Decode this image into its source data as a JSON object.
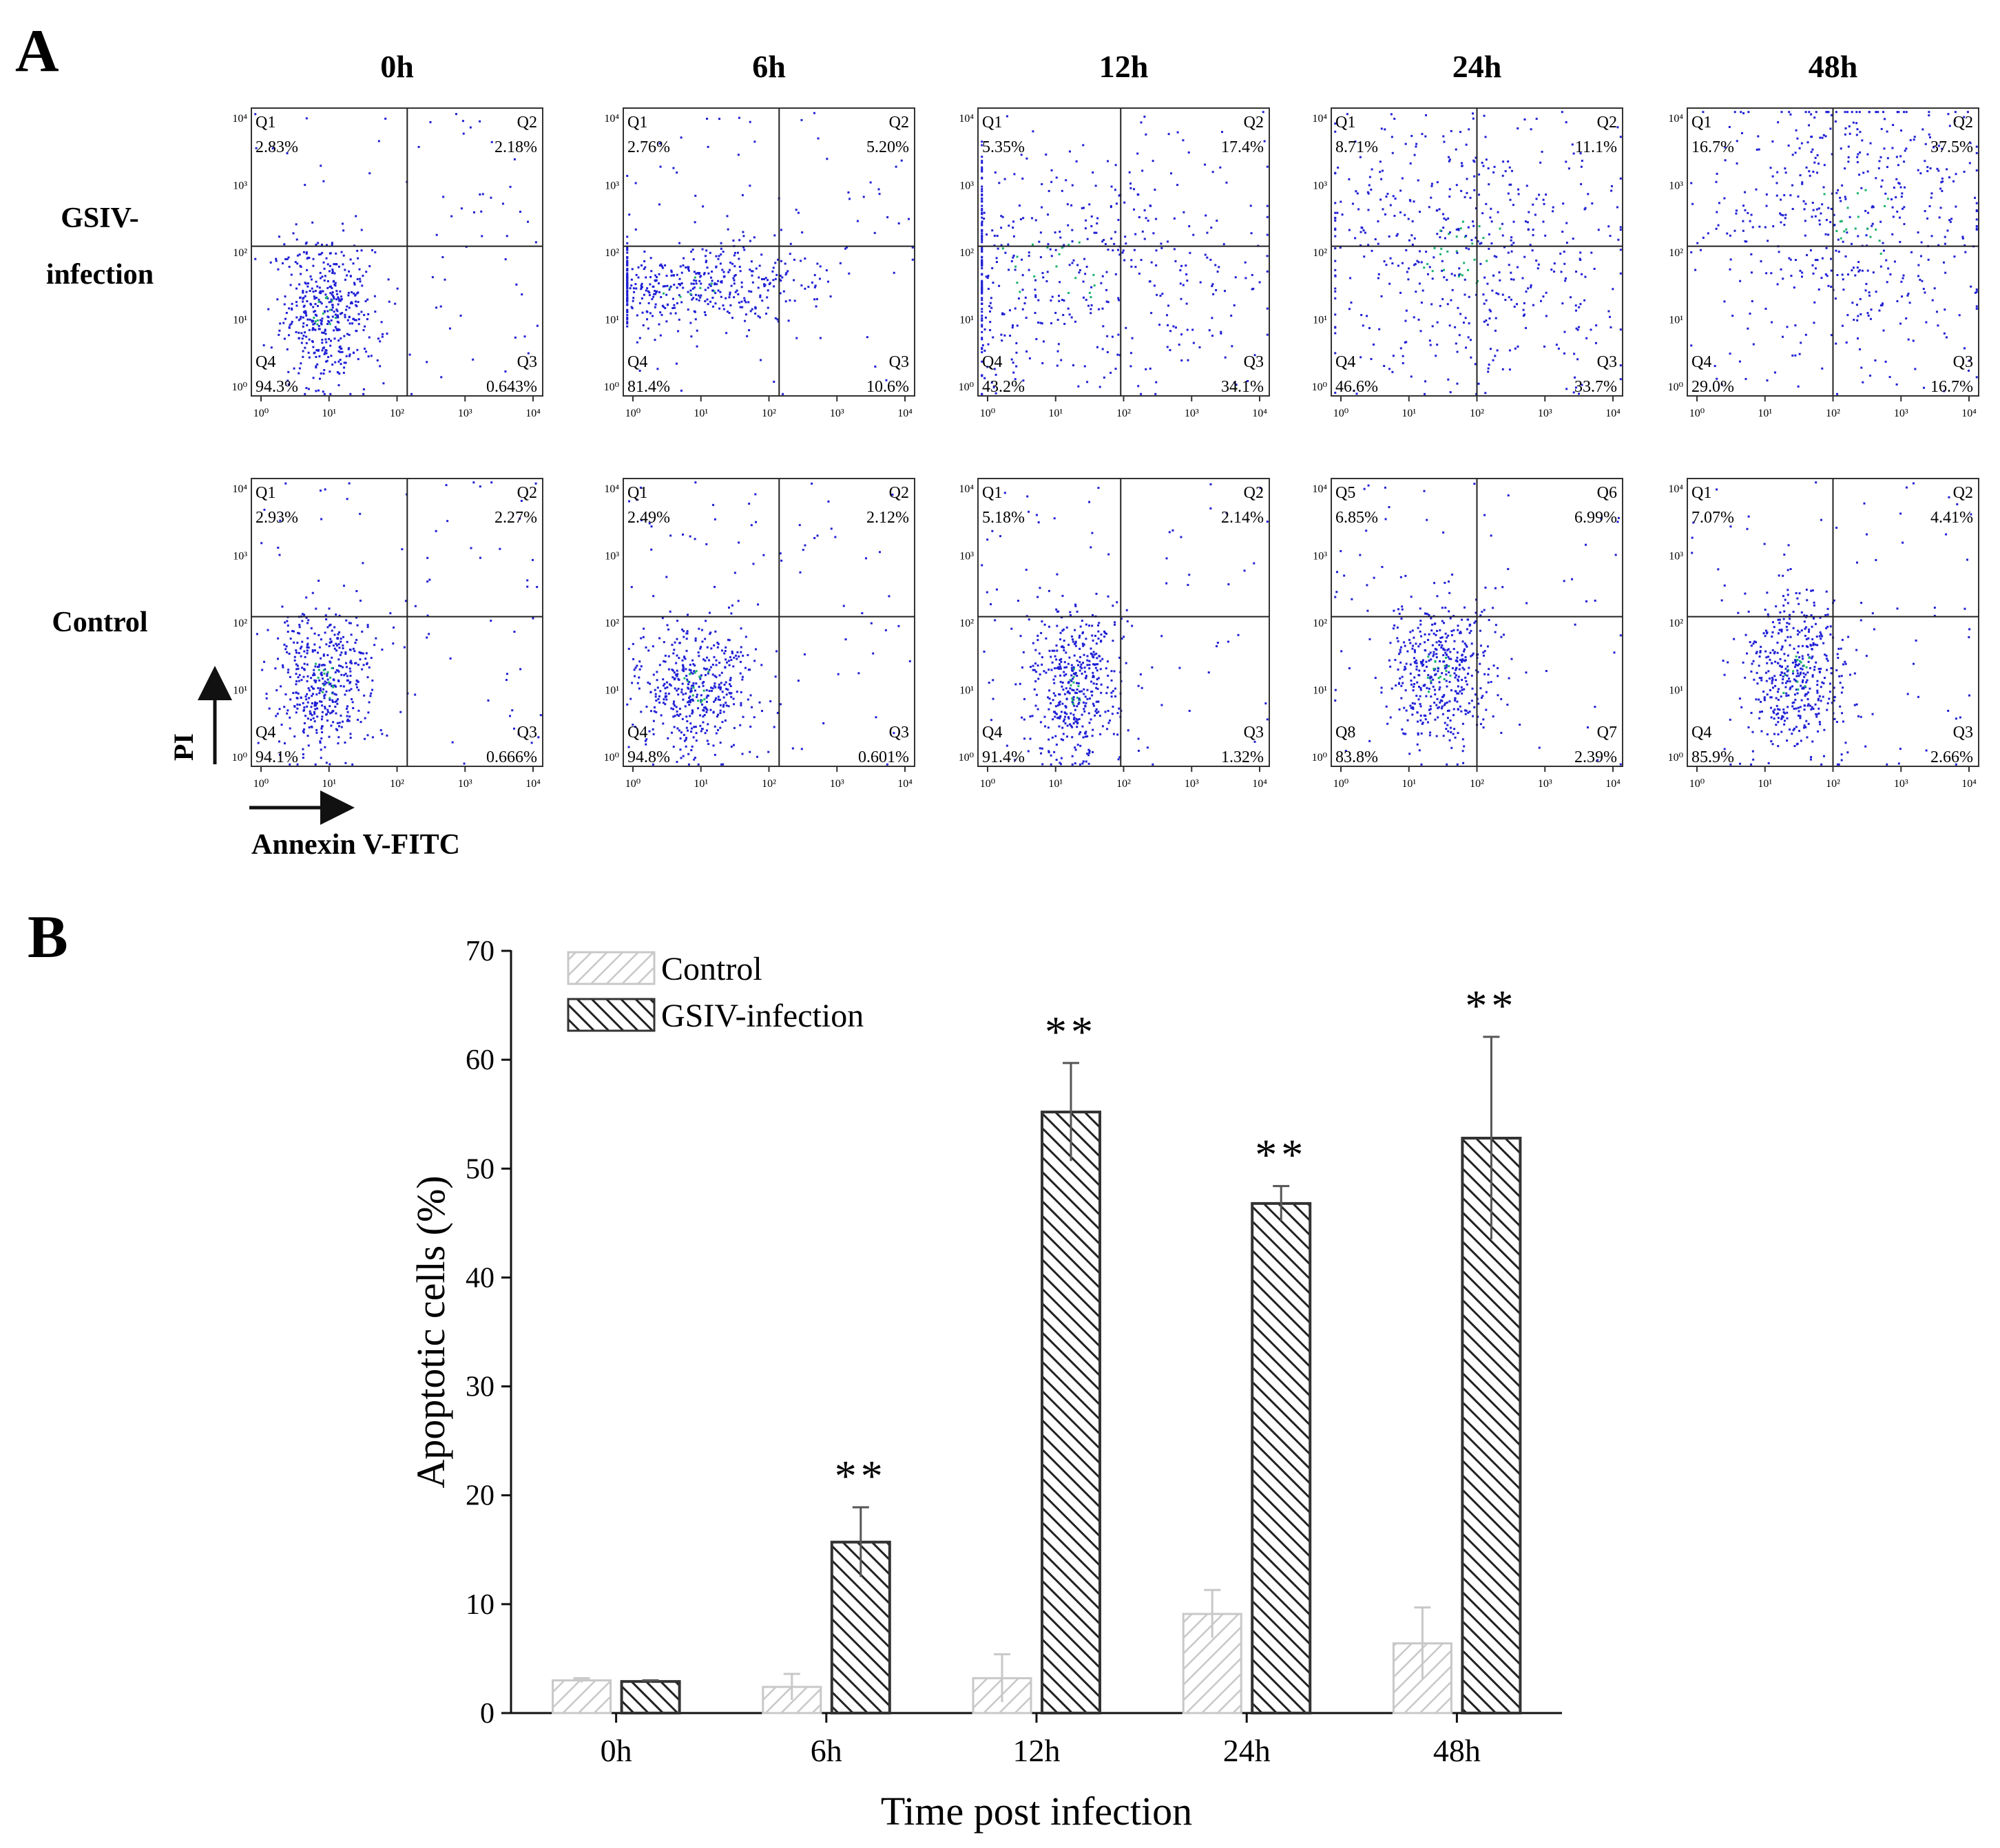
{
  "panel_a": {
    "label": "A",
    "time_headers": [
      "0h",
      "6h",
      "12h",
      "24h",
      "48h"
    ],
    "row_labels": [
      [
        "GSIV-",
        "infection"
      ],
      [
        "Control"
      ]
    ],
    "y_axis_label": "PI",
    "x_axis_label": "Annexin V-FITC",
    "tick_labels": [
      "10⁰",
      "10¹",
      "10²",
      "10³",
      "10⁴"
    ],
    "plots": [
      [
        {
          "q": [
            "Q1",
            "Q2",
            "Q3",
            "Q4"
          ],
          "p": [
            "2.83%",
            "2.18%",
            "0.643%",
            "94.3%"
          ]
        },
        {
          "q": [
            "Q1",
            "Q2",
            "Q3",
            "Q4"
          ],
          "p": [
            "2.76%",
            "5.20%",
            "10.6%",
            "81.4%"
          ]
        },
        {
          "q": [
            "Q1",
            "Q2",
            "Q3",
            "Q4"
          ],
          "p": [
            "5.35%",
            "17.4%",
            "34.1%",
            "43.2%"
          ]
        },
        {
          "q": [
            "Q1",
            "Q2",
            "Q3",
            "Q4"
          ],
          "p": [
            "8.71%",
            "11.1%",
            "33.7%",
            "46.6%"
          ]
        },
        {
          "q": [
            "Q1",
            "Q2",
            "Q3",
            "Q4"
          ],
          "p": [
            "16.7%",
            "37.5%",
            "16.7%",
            "29.0%"
          ]
        }
      ],
      [
        {
          "q": [
            "Q1",
            "Q2",
            "Q3",
            "Q4"
          ],
          "p": [
            "2.93%",
            "2.27%",
            "0.666%",
            "94.1%"
          ]
        },
        {
          "q": [
            "Q1",
            "Q2",
            "Q3",
            "Q4"
          ],
          "p": [
            "2.49%",
            "2.12%",
            "0.601%",
            "94.8%"
          ]
        },
        {
          "q": [
            "Q1",
            "Q2",
            "Q3",
            "Q4"
          ],
          "p": [
            "5.18%",
            "2.14%",
            "1.32%",
            "91.4%"
          ]
        },
        {
          "q": [
            "Q5",
            "Q6",
            "Q7",
            "Q8"
          ],
          "p": [
            "6.85%",
            "6.99%",
            "2.39%",
            "83.8%"
          ]
        },
        {
          "q": [
            "Q1",
            "Q2",
            "Q3",
            "Q4"
          ],
          "p": [
            "7.07%",
            "4.41%",
            "2.66%",
            "85.9%"
          ]
        }
      ]
    ]
  },
  "panel_b": {
    "label": "B",
    "significance_mark": "**"
  },
  "colors": {
    "control": "#c8c8c8",
    "infection": "#333333",
    "scatter_blue": "#1f1fd6",
    "scatter_green": "#19b36b"
  },
  "chart_data": {
    "type": "bar",
    "title": "",
    "xlabel": "Time post infection",
    "ylabel": "Apoptotic cells (%)",
    "ylim": [
      0,
      70
    ],
    "yticks": [
      0,
      10,
      20,
      30,
      40,
      50,
      60,
      70
    ],
    "categories": [
      "0h",
      "6h",
      "12h",
      "24h",
      "48h"
    ],
    "series": [
      {
        "name": "Control",
        "values": [
          3.0,
          2.4,
          3.2,
          9.1,
          6.4
        ],
        "errors": [
          0.2,
          1.2,
          2.2,
          2.2,
          3.3
        ]
      },
      {
        "name": "GSIV-infection",
        "values": [
          2.9,
          15.7,
          55.2,
          46.8,
          52.8
        ],
        "errors": [
          0.1,
          3.2,
          4.5,
          1.6,
          9.3
        ],
        "significance": [
          "",
          "**",
          "**",
          "**",
          "**"
        ]
      }
    ],
    "legend": "top-left"
  }
}
